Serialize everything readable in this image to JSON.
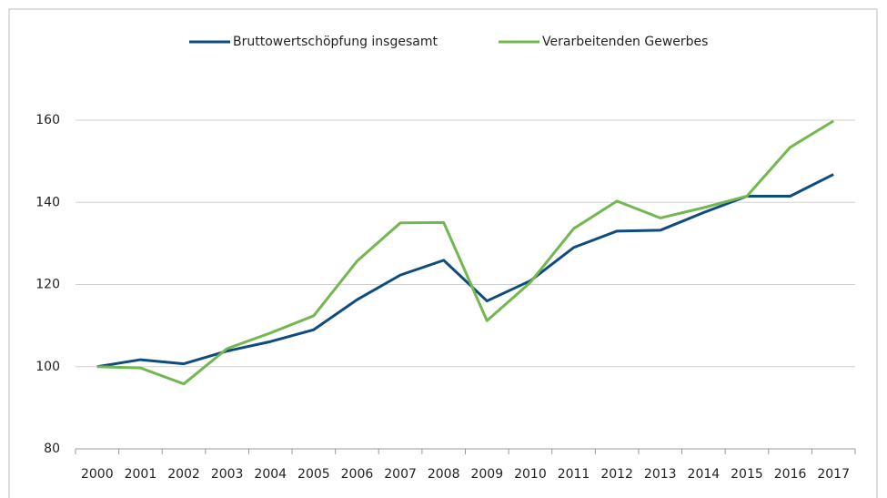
{
  "chart_data": {
    "type": "line",
    "categories": [
      "2000",
      "2001",
      "2002",
      "2003",
      "2004",
      "2005",
      "2006",
      "2007",
      "2008",
      "2009",
      "2010",
      "2011",
      "2012",
      "2013",
      "2014",
      "2015",
      "2016",
      "2017"
    ],
    "series": [
      {
        "name": "Bruttowertschöpfung insgesamt",
        "color": "#0e4c80",
        "values": [
          100,
          101.7,
          100.7,
          103.8,
          106.1,
          109,
          116.3,
          122.3,
          125.9,
          116,
          120.9,
          129,
          133,
          133.2,
          137.5,
          141.5,
          141.5,
          146.8
        ]
      },
      {
        "name": "Verarbeitenden Gewerbes",
        "color": "#72b74f",
        "values": [
          100,
          99.7,
          95.8,
          104.4,
          108.2,
          112.4,
          125.7,
          135,
          135.1,
          111.2,
          120.5,
          133.6,
          140.3,
          136.2,
          138.7,
          141.5,
          153.4,
          159.8
        ]
      }
    ],
    "ylim": [
      80,
      160
    ],
    "yticks": [
      80,
      100,
      120,
      140,
      160
    ],
    "grid": true,
    "legend": "top"
  }
}
